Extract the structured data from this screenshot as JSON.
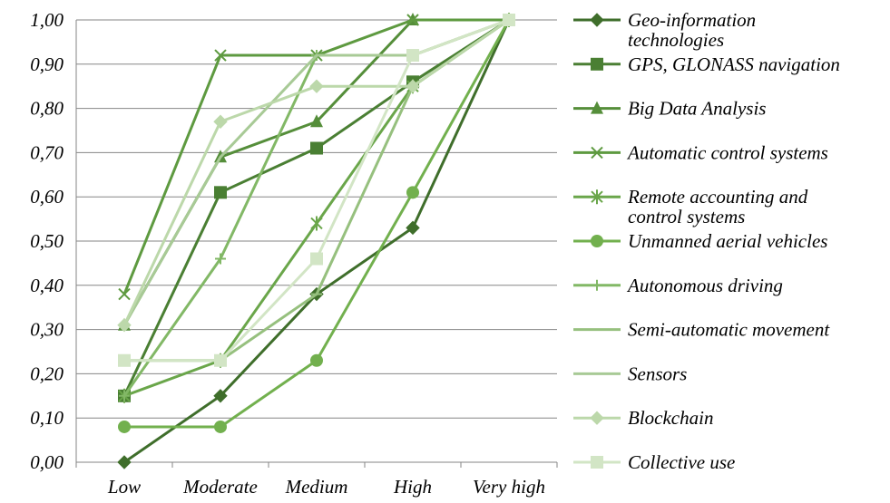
{
  "chart_data": {
    "type": "line",
    "categories": [
      "Low",
      "Moderate",
      "Medium",
      "High",
      "Very high"
    ],
    "y_ticks": [
      "0,00",
      "0,10",
      "0,20",
      "0,30",
      "0,40",
      "0,50",
      "0,60",
      "0,70",
      "0,80",
      "0,90",
      "1,00"
    ],
    "ylim": [
      0,
      1
    ],
    "grid": true,
    "legend_position": "right",
    "series": [
      {
        "name": "Geo-information technologies",
        "marker": "diamond",
        "color": "#3F6E2B",
        "values": [
          0.0,
          0.15,
          0.38,
          0.53,
          1.0
        ]
      },
      {
        "name": "GPS, GLONASS navigation",
        "marker": "square",
        "color": "#4A7F33",
        "values": [
          0.15,
          0.61,
          0.71,
          0.86,
          1.0
        ]
      },
      {
        "name": "Big Data Analysis",
        "marker": "triangle",
        "color": "#558E3A",
        "values": [
          0.31,
          0.69,
          0.77,
          1.0,
          1.0
        ]
      },
      {
        "name": "Automatic control systems",
        "marker": "x",
        "color": "#5E9A40",
        "values": [
          0.38,
          0.92,
          0.92,
          1.0,
          1.0
        ]
      },
      {
        "name": "Remote accounting and control systems",
        "marker": "star",
        "color": "#6AA64A",
        "values": [
          0.15,
          0.23,
          0.54,
          0.85,
          1.0
        ]
      },
      {
        "name": "Unmanned aerial vehicles",
        "marker": "circle",
        "color": "#72B04E",
        "values": [
          0.08,
          0.08,
          0.23,
          0.61,
          1.0
        ]
      },
      {
        "name": "Autonomous driving",
        "marker": "plus",
        "color": "#82B866",
        "values": [
          0.15,
          0.46,
          0.92,
          0.92,
          1.0
        ]
      },
      {
        "name": "Semi-automatic movement",
        "marker": "dash",
        "color": "#96C07E",
        "values": [
          0.23,
          0.23,
          0.38,
          0.85,
          1.0
        ]
      },
      {
        "name": "Sensors",
        "marker": "none",
        "color": "#A8CA96",
        "values": [
          0.31,
          0.69,
          0.92,
          0.92,
          1.0
        ]
      },
      {
        "name": "Blockchain",
        "marker": "diamond",
        "color": "#BCD8AA",
        "values": [
          0.31,
          0.77,
          0.85,
          0.85,
          1.0
        ]
      },
      {
        "name": "Collective use",
        "marker": "square",
        "color": "#D2E5C5",
        "values": [
          0.23,
          0.23,
          0.46,
          0.92,
          1.0
        ]
      }
    ]
  }
}
